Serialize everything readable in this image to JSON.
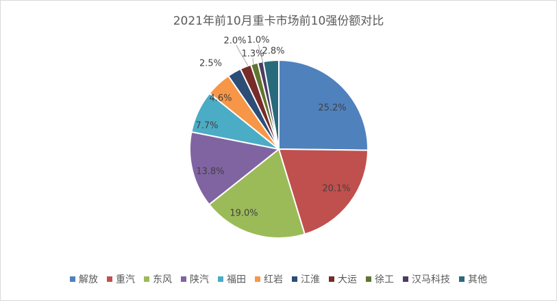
{
  "chart_data": {
    "type": "pie",
    "title": "2021年前10月重卡市场前10强份额对比",
    "legend_position": "bottom",
    "slices": [
      {
        "name": "解放",
        "value": 25.2,
        "label": "25.2%",
        "color": "#4f81bd"
      },
      {
        "name": "重汽",
        "value": 20.1,
        "label": "20.1%",
        "color": "#c0504d"
      },
      {
        "name": "东风",
        "value": 19.0,
        "label": "19.0%",
        "color": "#9bbb59"
      },
      {
        "name": "陕汽",
        "value": 13.8,
        "label": "13.8%",
        "color": "#8064a2"
      },
      {
        "name": "福田",
        "value": 7.7,
        "label": "7.7%",
        "color": "#4bacc6"
      },
      {
        "name": "红岩",
        "value": 4.6,
        "label": "4.6%",
        "color": "#f79646"
      },
      {
        "name": "江淮",
        "value": 2.5,
        "label": "2.5%",
        "color": "#2c4d75"
      },
      {
        "name": "大运",
        "value": 2.0,
        "label": "2.0%",
        "color": "#772c2a"
      },
      {
        "name": "徐工",
        "value": 1.3,
        "label": "1.3%",
        "color": "#5f7530"
      },
      {
        "name": "汉马科技",
        "value": 1.0,
        "label": "1.0%",
        "color": "#4d3b62"
      },
      {
        "name": "其他",
        "value": 2.8,
        "label": "2.8%",
        "color": "#276a7c"
      }
    ]
  }
}
